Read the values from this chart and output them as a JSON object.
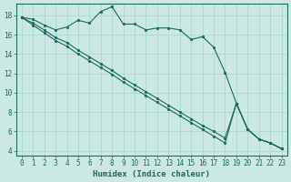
{
  "xlabel": "Humidex (Indice chaleur)",
  "background_color": "#cce8e4",
  "line_color": "#1a6b5a",
  "grid_color": "#a8d4cc",
  "x_values": [
    0,
    1,
    2,
    3,
    4,
    5,
    6,
    7,
    8,
    9,
    10,
    11,
    12,
    13,
    14,
    15,
    16,
    17,
    18,
    19,
    20,
    21,
    22,
    23
  ],
  "line1": [
    17.8,
    17.6,
    17.0,
    16.5,
    16.8,
    17.5,
    17.2,
    18.4,
    18.9,
    17.1,
    17.1,
    16.5,
    16.7,
    16.7,
    16.5,
    15.5,
    15.8,
    14.7,
    12.1,
    8.9,
    6.2,
    5.2,
    4.8,
    4.2
  ],
  "line2": [
    17.8,
    17.2,
    16.5,
    15.7,
    15.2,
    14.4,
    13.7,
    13.0,
    12.3,
    11.5,
    10.8,
    10.1,
    9.4,
    8.7,
    8.0,
    7.3,
    6.6,
    6.0,
    5.3,
    8.9,
    6.2,
    5.2,
    4.8,
    4.2
  ],
  "line3": [
    17.8,
    17.0,
    16.2,
    15.4,
    14.8,
    14.0,
    13.3,
    12.6,
    11.9,
    11.1,
    10.4,
    9.7,
    9.0,
    8.3,
    7.6,
    6.9,
    6.2,
    5.5,
    4.8,
    8.9,
    6.2,
    5.2,
    4.8,
    4.2
  ],
  "ylim_min": 3.5,
  "ylim_max": 19.2,
  "xlim_min": -0.5,
  "xlim_max": 23.5,
  "yticks": [
    4,
    6,
    8,
    10,
    12,
    14,
    16,
    18
  ],
  "xticks": [
    0,
    1,
    2,
    3,
    4,
    5,
    6,
    7,
    8,
    9,
    10,
    11,
    12,
    13,
    14,
    15,
    16,
    17,
    18,
    19,
    20,
    21,
    22,
    23
  ],
  "tick_fontsize": 5.5,
  "xlabel_fontsize": 6.5,
  "marker_size": 2.0,
  "line_width": 0.8
}
